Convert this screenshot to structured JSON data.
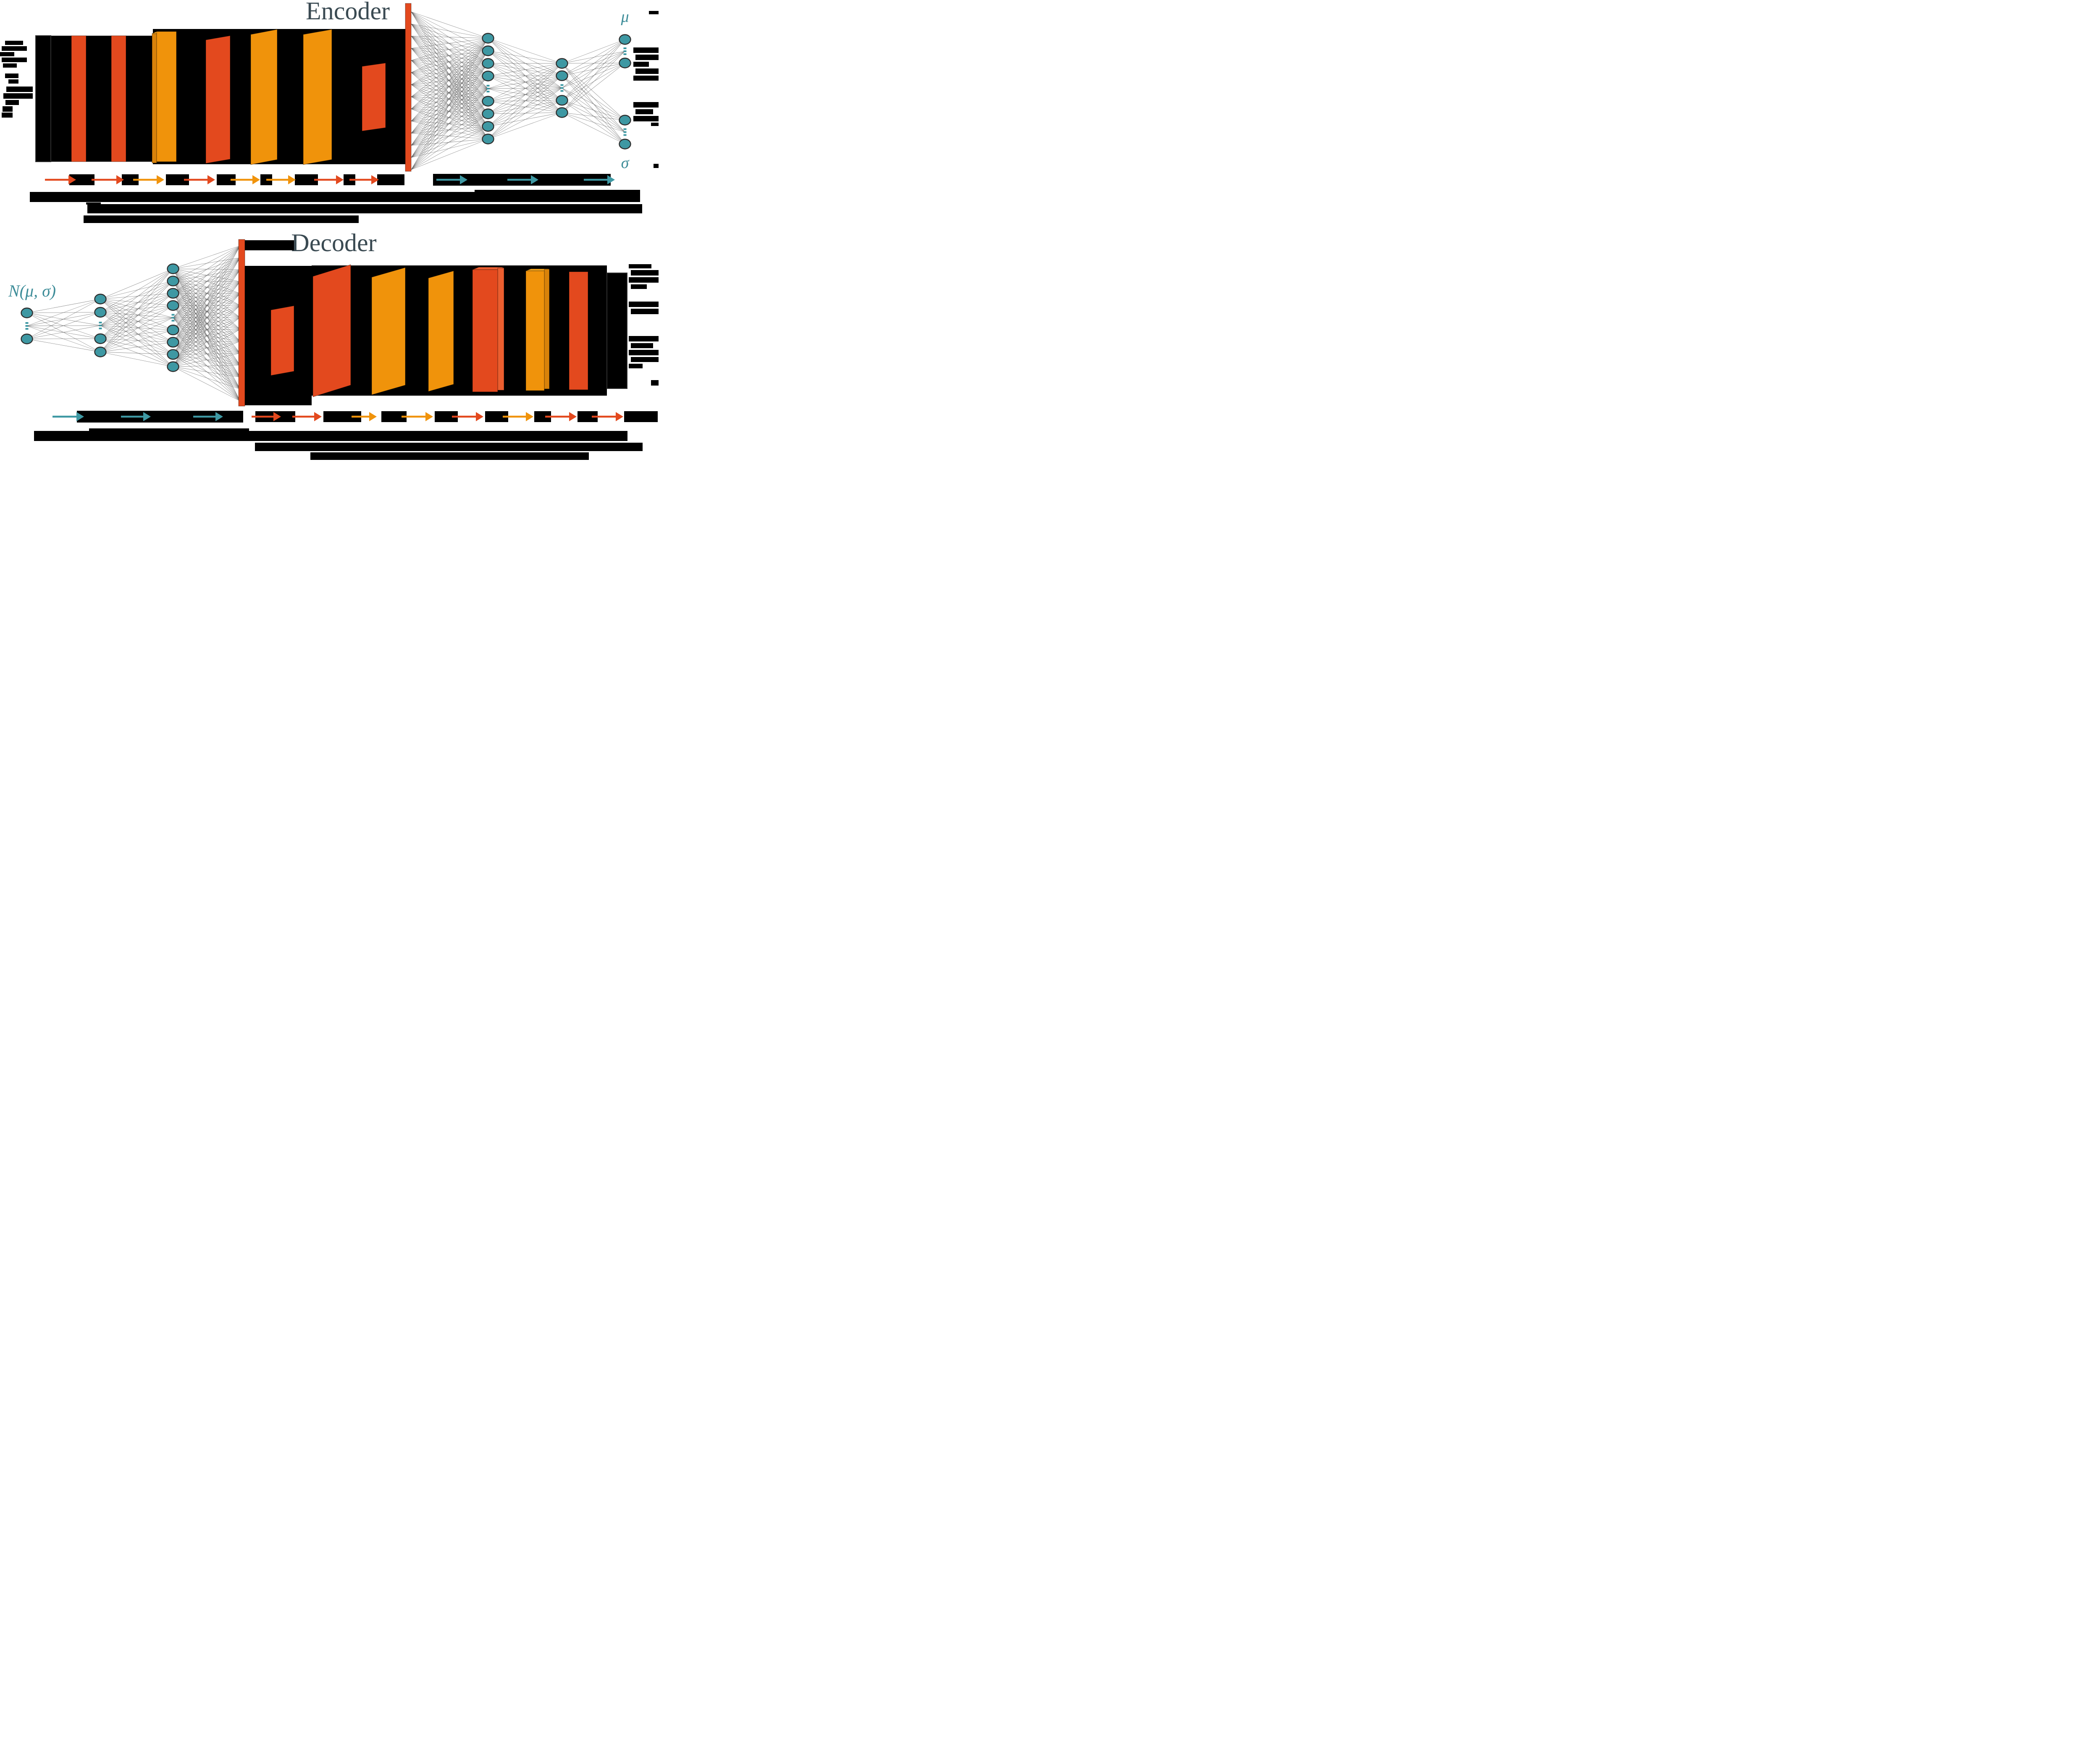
{
  "figure": {
    "encoder": {
      "title": "Encoder",
      "mu_label": "μ",
      "sigma_label": "σ"
    },
    "decoder": {
      "title": "Decoder",
      "latent_label": "N(μ, σ)"
    }
  },
  "palette": {
    "conv_red": "#E3491E",
    "conv_red_side": "#EC5E2F",
    "conv_orange": "#F0930B",
    "conv_orange_side": "#D8820A",
    "conv_orange_top": "#F4A31A",
    "node_teal": "#3E98A3",
    "node_outline": "#2D2D2D",
    "label_teal": "#3E8D99",
    "title_slate": "#3A4A52",
    "wire_gray": "#555555",
    "ink_black": "#000000"
  },
  "flow_arrows": {
    "encoder": [
      "red",
      "red",
      "orange",
      "red",
      "orange",
      "orange",
      "red",
      "red",
      "teal",
      "teal",
      "teal"
    ],
    "decoder": [
      "teal",
      "teal",
      "teal",
      "red",
      "red",
      "orange",
      "orange",
      "red",
      "orange",
      "red",
      "red"
    ]
  },
  "redactions": {
    "description": "all small annotations render as solid black bars (illegible)",
    "encoder_caption_lines": 3,
    "decoder_caption_lines": 3
  }
}
